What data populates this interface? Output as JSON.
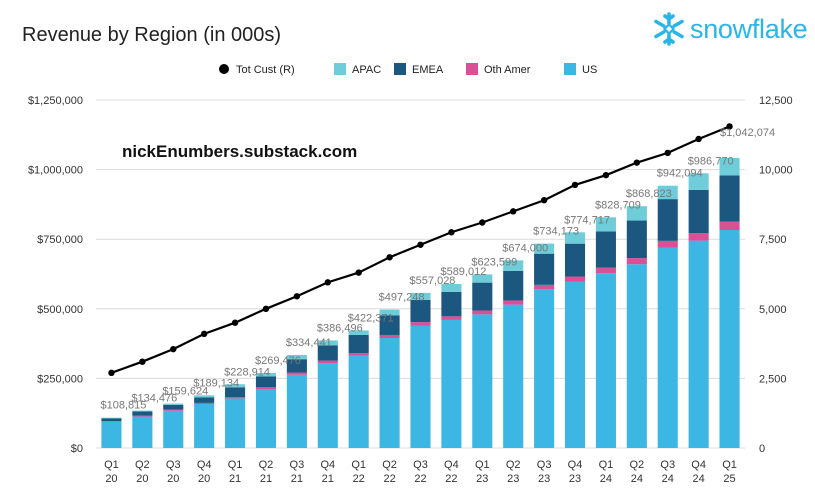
{
  "brand": {
    "name": "snowflake",
    "color": "#29b5e8"
  },
  "watermark": "nickEnumbers.substack.com",
  "chart_data": {
    "type": "bar",
    "stacked": true,
    "title": "Revenue by Region (in 000s)",
    "xlabel": "",
    "ylabel": "",
    "categories": [
      [
        "Q1",
        "20"
      ],
      [
        "Q2",
        "20"
      ],
      [
        "Q3",
        "20"
      ],
      [
        "Q4",
        "20"
      ],
      [
        "Q1",
        "21"
      ],
      [
        "Q2",
        "21"
      ],
      [
        "Q3",
        "21"
      ],
      [
        "Q4",
        "21"
      ],
      [
        "Q1",
        "22"
      ],
      [
        "Q2",
        "22"
      ],
      [
        "Q3",
        "22"
      ],
      [
        "Q4",
        "22"
      ],
      [
        "Q1",
        "23"
      ],
      [
        "Q2",
        "23"
      ],
      [
        "Q3",
        "23"
      ],
      [
        "Q4",
        "23"
      ],
      [
        "Q1",
        "24"
      ],
      [
        "Q2",
        "24"
      ],
      [
        "Q3",
        "24"
      ],
      [
        "Q4",
        "24"
      ],
      [
        "Q1",
        "25"
      ]
    ],
    "ylim": [
      0,
      1250000
    ],
    "y_ticks": [
      0,
      250000,
      500000,
      750000,
      1000000,
      1250000
    ],
    "y_tick_labels": [
      "$0",
      "$250,000",
      "$500,000",
      "$750,000",
      "$1,000,000",
      "$1,250,000"
    ],
    "y2lim": [
      0,
      12500
    ],
    "y2_ticks": [
      0,
      2500,
      5000,
      7500,
      10000,
      12500
    ],
    "y2_tick_labels": [
      "0",
      "2,500",
      "5,000",
      "7,500",
      "10,000",
      "12,500"
    ],
    "grid": true,
    "legend_position": "top",
    "legend": [
      {
        "name": "Tot Cust (R)",
        "color": "#000000",
        "marker": "line-dot"
      },
      {
        "name": "APAC",
        "color": "#6ecdd9",
        "marker": "square"
      },
      {
        "name": "EMEA",
        "color": "#1c5780",
        "marker": "square"
      },
      {
        "name": "Oth Amer",
        "color": "#d95096",
        "marker": "square"
      },
      {
        "name": "US",
        "color": "#3cb6e3",
        "marker": "square"
      }
    ],
    "series": [
      {
        "name": "US",
        "color": "#3cb6e3",
        "values": [
          95000,
          113000,
          134000,
          158000,
          178000,
          212000,
          263000,
          305000,
          331000,
          395000,
          440000,
          460000,
          480000,
          515000,
          570000,
          598000,
          628000,
          660000,
          720000,
          745000,
          783000
        ]
      },
      {
        "name": "Oth Amer",
        "color": "#d95096",
        "values": [
          2000,
          3000,
          3500,
          4000,
          5000,
          6000,
          8000,
          9000,
          10000,
          11000,
          12000,
          13000,
          14000,
          15000,
          16000,
          18000,
          20000,
          22000,
          24000,
          27000,
          30000
        ]
      },
      {
        "name": "EMEA",
        "color": "#1c5780",
        "values": [
          9000,
          15000,
          17000,
          20000,
          35000,
          39000,
          48000,
          55000,
          65000,
          70000,
          80000,
          88000,
          100000,
          106000,
          112000,
          118000,
          130000,
          135000,
          150000,
          155000,
          166000
        ]
      },
      {
        "name": "APAC",
        "color": "#6ecdd9",
        "values": [
          2815,
          3476,
          5124,
          7134,
          10914,
          12476,
          15441,
          17496,
          16371,
          21248,
          25028,
          28012,
          29599,
          38000,
          36173,
          40717,
          50709,
          51823,
          48094,
          59770,
          63074
        ]
      }
    ],
    "totals_labels": [
      "$108,815",
      "$134,476",
      "$159,624",
      "$189,134",
      "$228,914",
      "$269,476",
      "$334,441",
      "$386,496",
      "$422,371",
      "$497,248",
      "$557,028",
      "$589,012",
      "$623,599",
      "$674,000",
      "$734,173",
      "$774,717",
      "$828,709",
      "$868,823",
      "$942,094",
      "$986,770",
      "$1,042,074"
    ],
    "line_series": {
      "name": "Tot Cust (R)",
      "axis": "right",
      "color": "#000000",
      "values": [
        2700,
        3100,
        3550,
        4100,
        4500,
        5000,
        5450,
        5950,
        6300,
        6850,
        7300,
        7750,
        8100,
        8500,
        8900,
        9450,
        9800,
        10250,
        10600,
        11100,
        11550
      ]
    }
  }
}
